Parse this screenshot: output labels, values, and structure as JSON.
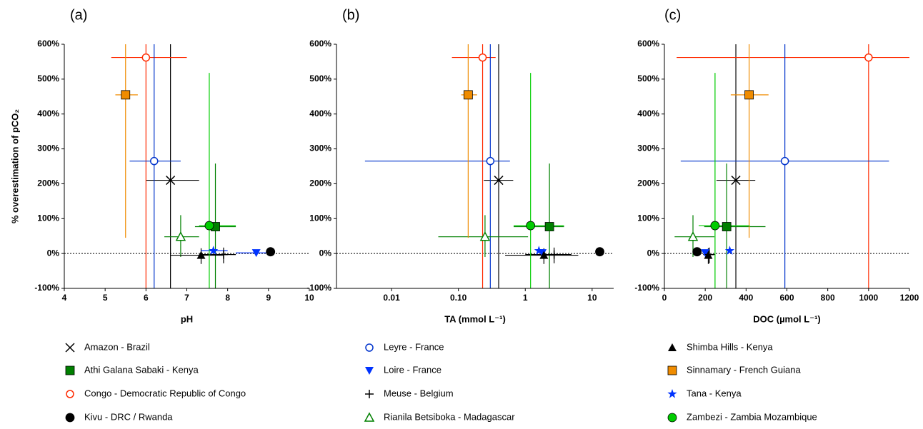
{
  "chart_data": [
    {
      "type": "scatter",
      "title": "(a)",
      "ylabel": "% overestimation of pCO₂",
      "xlabel": "pH",
      "xlim": [
        4,
        10
      ],
      "xticks": [
        4,
        5,
        6,
        7,
        8,
        9,
        10
      ],
      "ylim": [
        -100,
        600
      ],
      "yticks": [
        {
          "value": -100,
          "label": "-100%"
        },
        {
          "value": 0,
          "label": "0%"
        },
        {
          "value": 100,
          "label": "100%"
        },
        {
          "value": 200,
          "label": "200%"
        },
        {
          "value": 300,
          "label": "300%"
        },
        {
          "value": 400,
          "label": "400%"
        },
        {
          "value": 500,
          "label": "500%"
        },
        {
          "value": 600,
          "label": "600%"
        }
      ],
      "hline": 0,
      "series": [
        {
          "name": "Amazon - Brazil",
          "color": "#000000",
          "marker": "x",
          "x": 6.6,
          "y": 210,
          "x_err": [
            0.6,
            0.7
          ],
          "y_err": [
            310,
            500
          ]
        },
        {
          "name": "Athi Galana Sabaki - Kenya",
          "color": "#008000",
          "marker": "square",
          "x": 7.7,
          "y": 77,
          "x_err": [
            0.5,
            0.5
          ],
          "y_err": [
            177,
            181
          ]
        },
        {
          "name": "Congo - Democratic Republic of Congo",
          "color": "#ff2a00",
          "marker": "circle-open",
          "x": 6.0,
          "y": 562,
          "x_err": [
            0.85,
            1.0
          ],
          "y_err": [
            662,
            200
          ]
        },
        {
          "name": "Kivu - DRC / Rwanda",
          "color": "#000000",
          "marker": "circle",
          "x": 9.05,
          "y": 5,
          "x_err": [
            0,
            0
          ],
          "y_err": [
            0,
            0
          ]
        },
        {
          "name": "Leyre - France",
          "color": "#0033cc",
          "marker": "circle-open",
          "x": 6.2,
          "y": 265,
          "x_err": [
            0.6,
            0.65
          ],
          "y_err": [
            365,
            400
          ]
        },
        {
          "name": "Loire - France",
          "color": "#0033ff",
          "marker": "triangle-down",
          "x": 8.7,
          "y": 2,
          "x_err": [
            0.5,
            0.4
          ],
          "y_err": [
            0,
            0
          ]
        },
        {
          "name": "Meuse - Belgium",
          "color": "#000000",
          "marker": "plus",
          "x": 7.9,
          "y": -3,
          "x_err": [
            0.6,
            0.3
          ],
          "y_err": [
            25,
            20
          ]
        },
        {
          "name": "Rianila Betsiboka - Madagascar",
          "color": "#008000",
          "marker": "triangle-open",
          "x": 6.85,
          "y": 48,
          "x_err": [
            0.4,
            0.45
          ],
          "y_err": [
            58,
            62
          ]
        },
        {
          "name": "Shimba Hills - Kenya",
          "color": "#000000",
          "marker": "triangle",
          "x": 7.35,
          "y": -5,
          "x_err": [
            0.75,
            0.55
          ],
          "y_err": [
            25,
            20
          ]
        },
        {
          "name": "Sinnamary - French Guiana",
          "color": "#f08c00",
          "marker": "square",
          "x": 5.5,
          "y": 455,
          "x_err": [
            0.25,
            0.3
          ],
          "y_err": [
            410,
            200
          ]
        },
        {
          "name": "Tana - Kenya",
          "color": "#0033ff",
          "marker": "star",
          "x": 7.65,
          "y": 8,
          "x_err": [
            0.3,
            0.35
          ],
          "y_err": [
            0,
            0
          ]
        },
        {
          "name": "Zambezi - Zambia Mozambique",
          "color": "#00cc00",
          "marker": "circle",
          "x": 7.55,
          "y": 80,
          "x_err": [
            0.25,
            0.65
          ],
          "y_err": [
            180,
            438
          ]
        }
      ]
    },
    {
      "type": "scatter",
      "title": "(b)",
      "xlabel": "TA (mmol L⁻¹)",
      "log_x": true,
      "xlim": [
        0.0015,
        21
      ],
      "xticks": [
        0.01,
        {
          "value": 0.1,
          "label": "0.10"
        },
        1,
        10
      ],
      "ylim": [
        -100,
        600
      ],
      "yticks": [
        {
          "value": -100,
          "label": "-100%"
        },
        {
          "value": 0,
          "label": "0%"
        },
        {
          "value": 100,
          "label": "100%"
        },
        {
          "value": 200,
          "label": "200%"
        },
        {
          "value": 300,
          "label": "300%"
        },
        {
          "value": 400,
          "label": "400%"
        },
        {
          "value": 500,
          "label": "500%"
        },
        {
          "value": 600,
          "label": "600%"
        }
      ],
      "hline": 0,
      "series": [
        {
          "color": "#000000",
          "marker": "x",
          "x": 0.4,
          "y": 210,
          "x_err": [
            0.16,
            0.26
          ],
          "y_err": [
            310,
            500
          ]
        },
        {
          "color": "#008000",
          "marker": "square",
          "x": 2.3,
          "y": 77,
          "x_err": [
            1.63,
            1.5
          ],
          "y_err": [
            177,
            181
          ]
        },
        {
          "color": "#ff2a00",
          "marker": "circle-open",
          "x": 0.23,
          "y": 562,
          "x_err": [
            0.15,
            0.13
          ],
          "y_err": [
            662,
            200
          ]
        },
        {
          "color": "#000000",
          "marker": "circle",
          "x": 13,
          "y": 5,
          "x_err": [
            0,
            0
          ],
          "y_err": [
            0,
            0
          ]
        },
        {
          "color": "#0033cc",
          "marker": "circle-open",
          "x": 0.3,
          "y": 265,
          "x_err": [
            0.296,
            0.29
          ],
          "y_err": [
            365,
            400
          ]
        },
        {
          "color": "#0033ff",
          "marker": "triangle-down",
          "x": 1.8,
          "y": 2,
          "x_err": [
            0,
            0
          ],
          "y_err": [
            0,
            0
          ]
        },
        {
          "color": "#000000",
          "marker": "plus",
          "x": 2.7,
          "y": -3,
          "x_err": [
            1.7,
            2.2
          ],
          "y_err": [
            25,
            20
          ]
        },
        {
          "color": "#008000",
          "marker": "triangle-open",
          "x": 0.25,
          "y": 48,
          "x_err": [
            0.2,
            0.85
          ],
          "y_err": [
            58,
            62
          ]
        },
        {
          "color": "#000000",
          "marker": "triangle",
          "x": 1.9,
          "y": -5,
          "x_err": [
            1.4,
            4.3
          ],
          "y_err": [
            25,
            20
          ]
        },
        {
          "color": "#f08c00",
          "marker": "square",
          "x": 0.14,
          "y": 455,
          "x_err": [
            0.03,
            0.05
          ],
          "y_err": [
            410,
            200
          ]
        },
        {
          "color": "#0033ff",
          "marker": "star",
          "x": 1.6,
          "y": 8,
          "x_err": [
            0,
            0
          ],
          "y_err": [
            0,
            0
          ]
        },
        {
          "color": "#00cc00",
          "marker": "circle",
          "x": 1.2,
          "y": 80,
          "x_err": [
            0.53,
            2.6
          ],
          "y_err": [
            180,
            438
          ]
        }
      ]
    },
    {
      "type": "scatter",
      "title": "(c)",
      "xlabel": "DOC (µmol L⁻¹)",
      "xlim": [
        0,
        1200
      ],
      "xticks": [
        0,
        200,
        400,
        600,
        800,
        1000,
        1200
      ],
      "ylim": [
        -100,
        600
      ],
      "yticks": [
        {
          "value": -100,
          "label": "-100%"
        },
        {
          "value": 0,
          "label": "0%"
        },
        {
          "value": 100,
          "label": "100%"
        },
        {
          "value": 200,
          "label": "200%"
        },
        {
          "value": 300,
          "label": "300%"
        },
        {
          "value": 400,
          "label": "400%"
        },
        {
          "value": 500,
          "label": "500%"
        },
        {
          "value": 600,
          "label": "600%"
        }
      ],
      "hline": 0,
      "series": [
        {
          "color": "#000000",
          "marker": "x",
          "x": 350,
          "y": 210,
          "x_err": [
            95,
            95
          ],
          "y_err": [
            310,
            500
          ]
        },
        {
          "color": "#008000",
          "marker": "square",
          "x": 305,
          "y": 77,
          "x_err": [
            110,
            190
          ],
          "y_err": [
            177,
            181
          ]
        },
        {
          "color": "#ff2a00",
          "marker": "circle-open",
          "x": 1000,
          "y": 562,
          "x_err": [
            940,
            400
          ],
          "y_err": [
            662,
            200
          ]
        },
        {
          "color": "#000000",
          "marker": "circle",
          "x": 160,
          "y": 5,
          "x_err": [
            0,
            0
          ],
          "y_err": [
            0,
            0
          ]
        },
        {
          "color": "#0033cc",
          "marker": "circle-open",
          "x": 590,
          "y": 265,
          "x_err": [
            510,
            510
          ],
          "y_err": [
            365,
            400
          ]
        },
        {
          "color": "#0033ff",
          "marker": "triangle-down",
          "x": 200,
          "y": 2,
          "x_err": [
            0,
            0
          ],
          "y_err": [
            0,
            0
          ]
        },
        {
          "color": "#000000",
          "marker": "plus",
          "x": 220,
          "y": -3,
          "x_err": [
            30,
            30
          ],
          "y_err": [
            25,
            20
          ]
        },
        {
          "color": "#008000",
          "marker": "triangle-open",
          "x": 140,
          "y": 48,
          "x_err": [
            90,
            105
          ],
          "y_err": [
            58,
            62
          ]
        },
        {
          "color": "#000000",
          "marker": "triangle",
          "x": 215,
          "y": -5,
          "x_err": [
            0,
            0
          ],
          "y_err": [
            25,
            20
          ]
        },
        {
          "color": "#f08c00",
          "marker": "square",
          "x": 415,
          "y": 455,
          "x_err": [
            90,
            95
          ],
          "y_err": [
            410,
            200
          ]
        },
        {
          "color": "#0033ff",
          "marker": "star",
          "x": 320,
          "y": 8,
          "x_err": [
            0,
            0
          ],
          "y_err": [
            0,
            0
          ]
        },
        {
          "color": "#00cc00",
          "marker": "circle",
          "x": 248,
          "y": 80,
          "x_err": [
            80,
            170
          ],
          "y_err": [
            180,
            438
          ]
        }
      ]
    }
  ]
}
